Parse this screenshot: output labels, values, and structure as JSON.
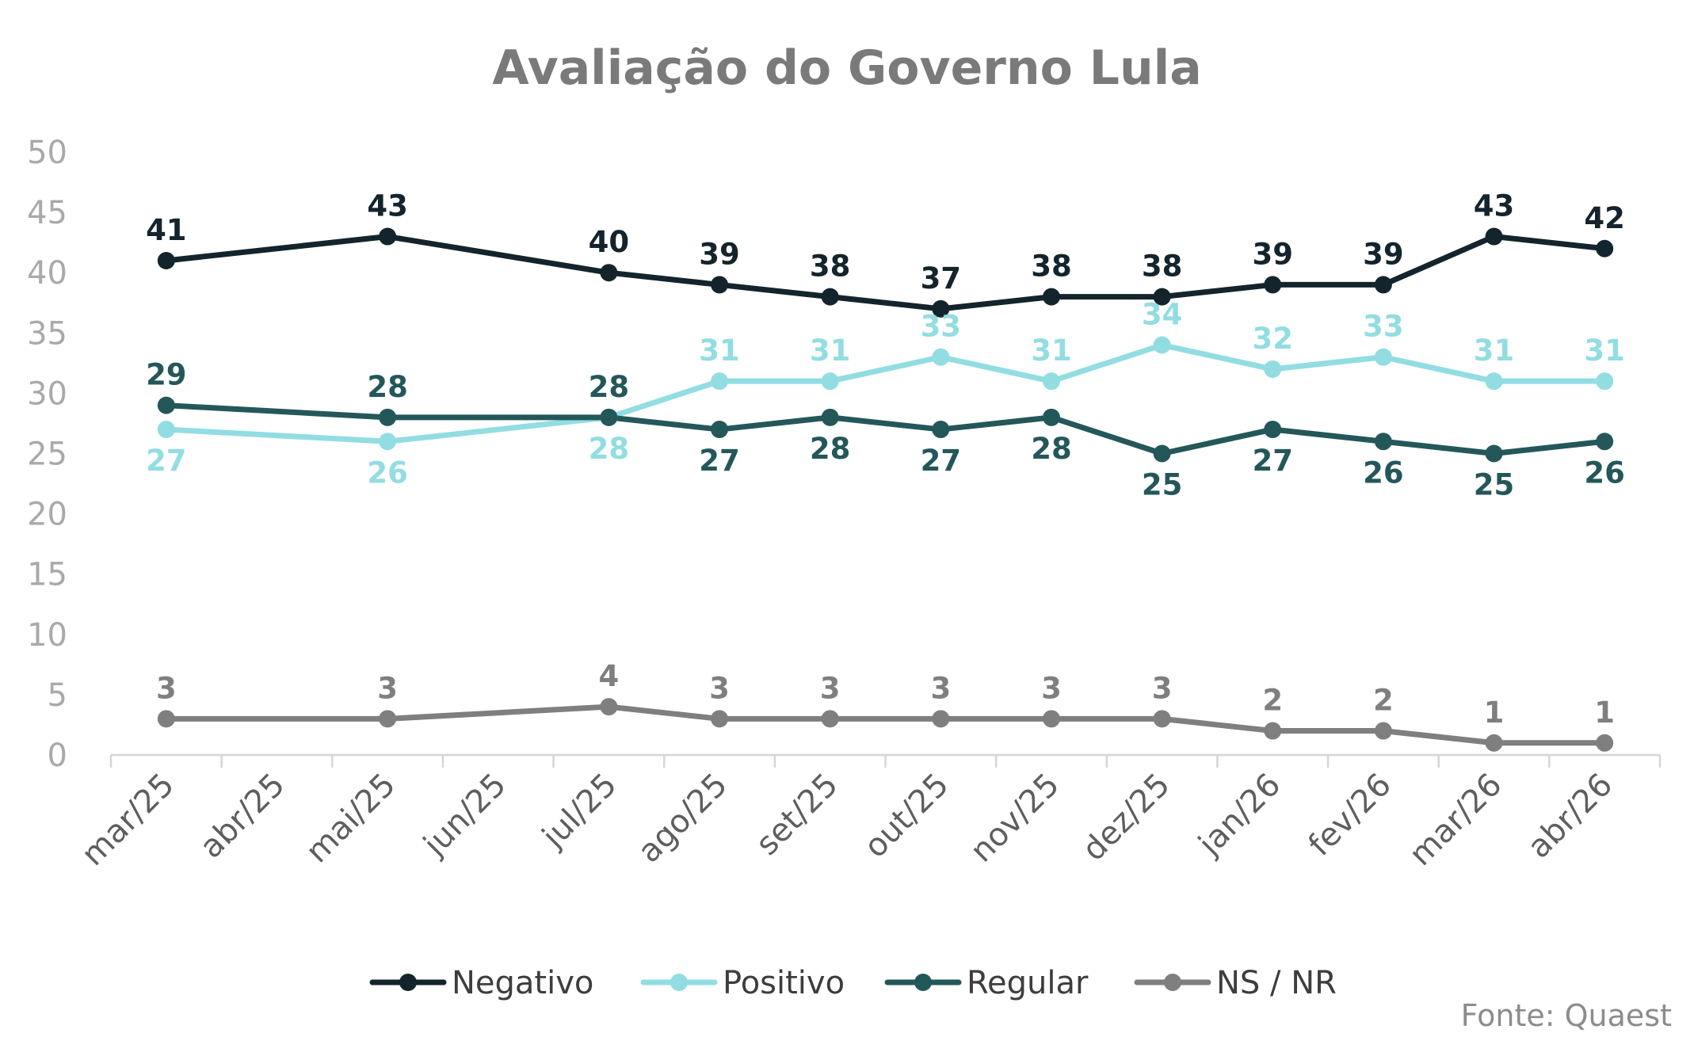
{
  "chart_data": {
    "type": "line",
    "title": "Avaliação do Governo Lula",
    "xlabel": "",
    "ylabel": "",
    "categories": [
      "mar/25",
      "abr/25",
      "mai/25",
      "jun/25",
      "jul/25",
      "ago/25",
      "set/25",
      "out/25",
      "nov/25",
      "dez/25",
      "jan/26",
      "fev/26",
      "mar/26",
      "abr/26"
    ],
    "ylim": [
      0,
      50
    ],
    "yticks": [
      "0",
      "5",
      "10",
      "15",
      "20",
      "25",
      "30",
      "35",
      "40",
      "45",
      "50"
    ],
    "grid": false,
    "legend_position": "bottom",
    "series": [
      {
        "name": "Negativo",
        "color": "#14242c",
        "values": [
          41,
          null,
          43,
          null,
          40,
          39,
          38,
          37,
          38,
          38,
          39,
          39,
          43,
          42
        ]
      },
      {
        "name": "Positivo",
        "color": "#92dde2",
        "values": [
          27,
          null,
          26,
          null,
          28,
          31,
          31,
          33,
          31,
          34,
          32,
          33,
          31,
          31
        ]
      },
      {
        "name": "Regular",
        "color": "#24575a",
        "values": [
          29,
          null,
          28,
          null,
          28,
          27,
          28,
          27,
          28,
          25,
          27,
          26,
          25,
          26
        ]
      },
      {
        "name": "NS / NR",
        "color": "#7f7f7f",
        "values": [
          3,
          null,
          3,
          null,
          4,
          3,
          3,
          3,
          3,
          3,
          2,
          2,
          1,
          1
        ]
      }
    ],
    "source": "Fonte: Quaest"
  }
}
